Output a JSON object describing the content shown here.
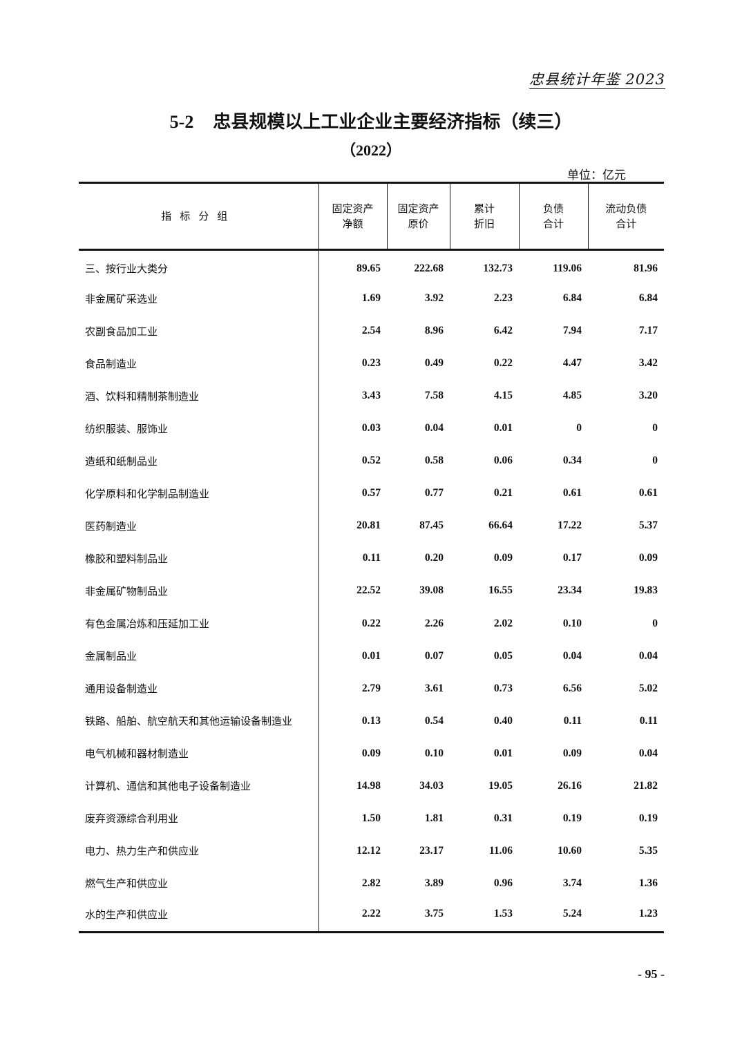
{
  "running_header": "忠县统计年鉴 2023",
  "title": {
    "number": "5-2",
    "text": "忠县规模以上工业企业主要经济指标（续三）"
  },
  "year": "（2022）",
  "unit": "单位：亿元",
  "table": {
    "headers": [
      [
        "指标分组"
      ],
      [
        "固定资产",
        "净额"
      ],
      [
        "固定资产",
        "原价"
      ],
      [
        "累计",
        "折旧"
      ],
      [
        "负债",
        "合计"
      ],
      [
        "流动负债",
        "合计"
      ]
    ],
    "rows": [
      [
        "三、按行业大类分",
        "89.65",
        "222.68",
        "132.73",
        "119.06",
        "81.96"
      ],
      [
        "非金属矿采选业",
        "1.69",
        "3.92",
        "2.23",
        "6.84",
        "6.84"
      ],
      [
        "农副食品加工业",
        "2.54",
        "8.96",
        "6.42",
        "7.94",
        "7.17"
      ],
      [
        "食品制造业",
        "0.23",
        "0.49",
        "0.22",
        "4.47",
        "3.42"
      ],
      [
        "酒、饮料和精制茶制造业",
        "3.43",
        "7.58",
        "4.15",
        "4.85",
        "3.20"
      ],
      [
        "纺织服装、服饰业",
        "0.03",
        "0.04",
        "0.01",
        "0",
        "0"
      ],
      [
        "造纸和纸制品业",
        "0.52",
        "0.58",
        "0.06",
        "0.34",
        "0"
      ],
      [
        "化学原料和化学制品制造业",
        "0.57",
        "0.77",
        "0.21",
        "0.61",
        "0.61"
      ],
      [
        "医药制造业",
        "20.81",
        "87.45",
        "66.64",
        "17.22",
        "5.37"
      ],
      [
        "橡胶和塑料制品业",
        "0.11",
        "0.20",
        "0.09",
        "0.17",
        "0.09"
      ],
      [
        "非金属矿物制品业",
        "22.52",
        "39.08",
        "16.55",
        "23.34",
        "19.83"
      ],
      [
        "有色金属冶炼和压延加工业",
        "0.22",
        "2.26",
        "2.02",
        "0.10",
        "0"
      ],
      [
        "金属制品业",
        "0.01",
        "0.07",
        "0.05",
        "0.04",
        "0.04"
      ],
      [
        "通用设备制造业",
        "2.79",
        "3.61",
        "0.73",
        "6.56",
        "5.02"
      ],
      [
        "铁路、船舶、航空航天和其他运输设备制造业",
        "0.13",
        "0.54",
        "0.40",
        "0.11",
        "0.11"
      ],
      [
        "电气机械和器材制造业",
        "0.09",
        "0.10",
        "0.01",
        "0.09",
        "0.04"
      ],
      [
        "计算机、通信和其他电子设备制造业",
        "14.98",
        "34.03",
        "19.05",
        "26.16",
        "21.82"
      ],
      [
        "废弃资源综合利用业",
        "1.50",
        "1.81",
        "0.31",
        "0.19",
        "0.19"
      ],
      [
        "电力、热力生产和供应业",
        "12.12",
        "23.17",
        "11.06",
        "10.60",
        "5.35"
      ],
      [
        "燃气生产和供应业",
        "2.82",
        "3.89",
        "0.96",
        "3.74",
        "1.36"
      ],
      [
        "水的生产和供应业",
        "2.22",
        "3.75",
        "1.53",
        "5.24",
        "1.23"
      ]
    ]
  },
  "page_number": "- 95 -"
}
